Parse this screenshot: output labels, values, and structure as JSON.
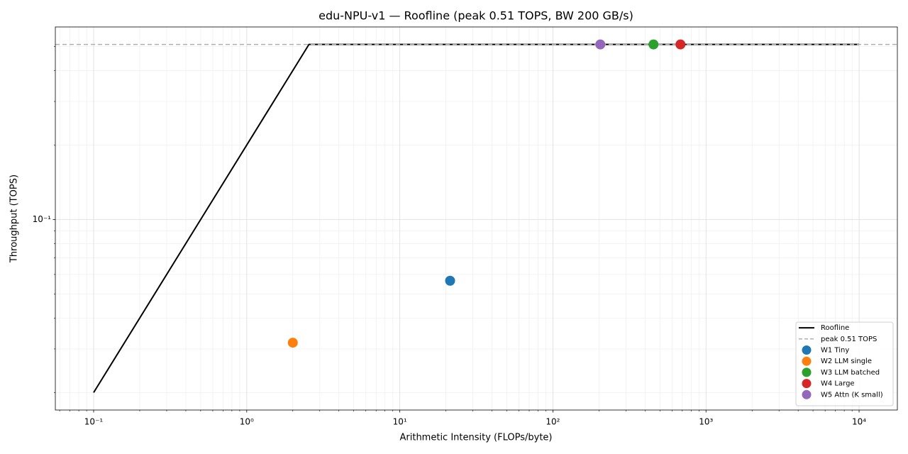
{
  "chart_data": {
    "type": "roofline",
    "title": "edu-NPU-v1 — Roofline (peak 0.51 TOPS, BW 200 GB/s)",
    "x_label": "Arithmetic Intensity (FLOPs/byte)",
    "y_label": "Throughput (TOPS)",
    "xscale": "log",
    "yscale": "log",
    "xlim": [
      0.0562,
      17783
    ],
    "ylim": [
      0.017,
      0.6
    ],
    "xticks": [
      {
        "value": 0.1,
        "label": "10⁻¹"
      },
      {
        "value": 1,
        "label": "10⁰"
      },
      {
        "value": 10,
        "label": "10¹"
      },
      {
        "value": 100,
        "label": "10²"
      },
      {
        "value": 1000,
        "label": "10³"
      },
      {
        "value": 10000,
        "label": "10⁴"
      }
    ],
    "yticks": [
      {
        "value": 0.1,
        "label": "10⁻¹"
      }
    ],
    "grid": true,
    "minor_grid": true,
    "legend": "lower right",
    "series": [
      {
        "name": "Roofline",
        "kind": "line",
        "color": "#000000",
        "x": [
          0.1,
          2.55,
          10000
        ],
        "values": [
          0.02,
          0.51,
          0.51
        ]
      },
      {
        "name": "peak 0.51 TOPS",
        "kind": "hline",
        "color": "#b0b0b0",
        "values": [
          0.51
        ]
      },
      {
        "name": "W1 Tiny",
        "kind": "point",
        "color": "#1f77b4",
        "x": [
          21.3
        ],
        "values": [
          0.0566
        ]
      },
      {
        "name": "W2 LLM single",
        "kind": "point",
        "color": "#ff7f0e",
        "x": [
          2.0
        ],
        "values": [
          0.0318
        ]
      },
      {
        "name": "W3 LLM batched",
        "kind": "point",
        "color": "#2ca02c",
        "x": [
          454
        ],
        "values": [
          0.51
        ]
      },
      {
        "name": "W4 Large",
        "kind": "point",
        "color": "#d62728",
        "x": [
          681
        ],
        "values": [
          0.51
        ]
      },
      {
        "name": "W5 Attn (K small)",
        "kind": "point",
        "color": "#9467bd",
        "x": [
          204
        ],
        "values": [
          0.51
        ]
      }
    ]
  }
}
